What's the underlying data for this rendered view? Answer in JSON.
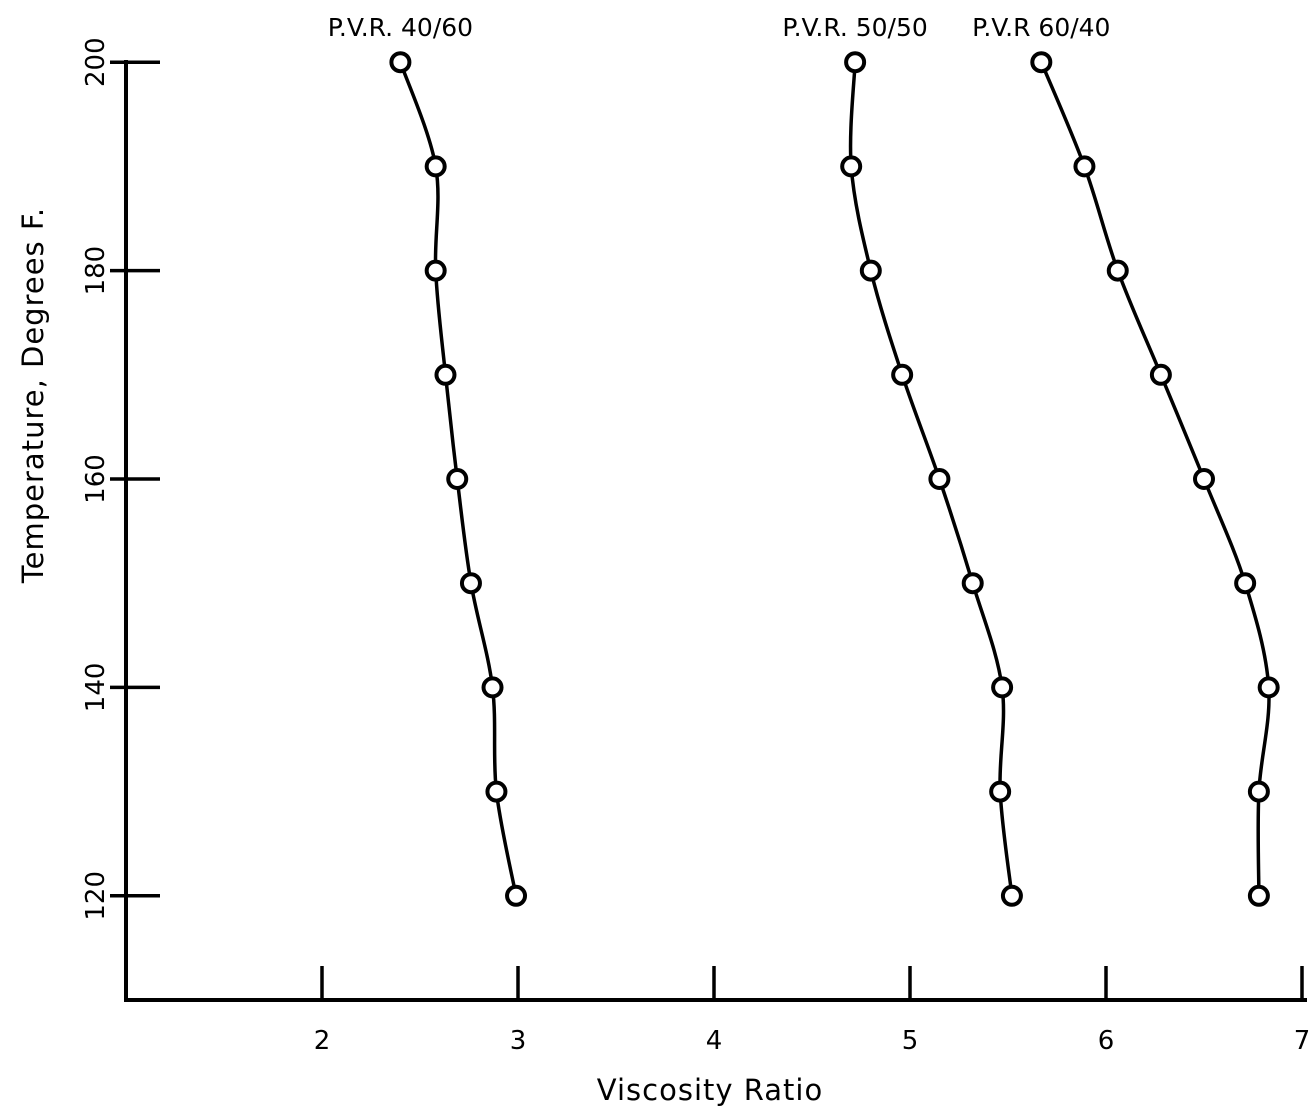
{
  "chart_data": {
    "type": "line",
    "title": "",
    "xlabel": "Viscosity Ratio",
    "ylabel": "Temperature, Degrees F.",
    "xlim": [
      1,
      7
    ],
    "ylim": [
      110,
      200
    ],
    "x_ticks": [
      2,
      3,
      4,
      5,
      6,
      7
    ],
    "y_ticks": [
      120,
      140,
      160,
      180,
      200
    ],
    "grid": false,
    "legend": "none",
    "series": [
      {
        "name": "P.V.R. 40/60",
        "x": [
          2.4,
          2.58,
          2.58,
          2.63,
          2.69,
          2.76,
          2.87,
          2.89,
          2.99
        ],
        "y": [
          200,
          190,
          180,
          170,
          160,
          150,
          140,
          130,
          120
        ]
      },
      {
        "name": "P.V.R. 50/50",
        "x": [
          4.72,
          4.7,
          4.8,
          4.96,
          5.15,
          5.32,
          5.47,
          5.46,
          5.52
        ],
        "y": [
          200,
          190,
          180,
          170,
          160,
          150,
          140,
          130,
          120
        ]
      },
      {
        "name": "P.V.R 60/40",
        "x": [
          5.67,
          5.89,
          6.06,
          6.28,
          6.5,
          6.71,
          6.83,
          6.78,
          6.78
        ],
        "y": [
          200,
          190,
          180,
          170,
          160,
          150,
          140,
          130,
          120
        ]
      }
    ]
  }
}
